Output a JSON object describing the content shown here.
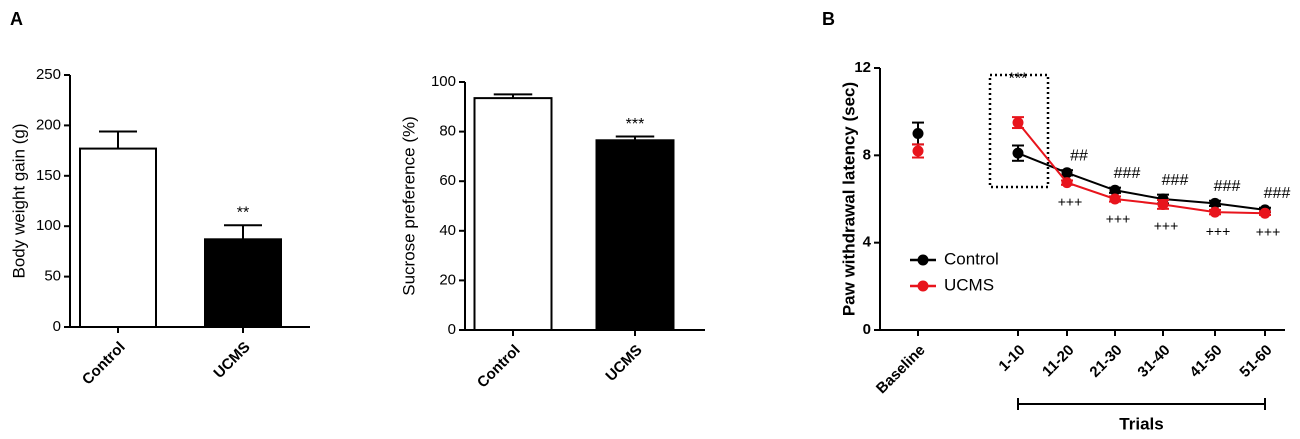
{
  "panels": [
    "A",
    "B"
  ],
  "chart_data": [
    {
      "type": "bar",
      "ylabel": "Body weight gain (g)",
      "categories": [
        "Control",
        "UCMS"
      ],
      "values": [
        177,
        87
      ],
      "errors": [
        17,
        14
      ],
      "colors": [
        "#ffffff",
        "#000000"
      ],
      "annotations": [
        null,
        "**"
      ],
      "ylim": [
        0,
        250
      ],
      "yticks": [
        0,
        50,
        100,
        150,
        200,
        250
      ]
    },
    {
      "type": "bar",
      "ylabel": "Sucrose preference (%)",
      "categories": [
        "Control",
        "UCMS"
      ],
      "values": [
        93.5,
        76.5
      ],
      "errors": [
        1.5,
        1.5
      ],
      "colors": [
        "#ffffff",
        "#000000"
      ],
      "annotations": [
        null,
        "***"
      ],
      "ylim": [
        0,
        100
      ],
      "yticks": [
        0,
        20,
        40,
        60,
        80,
        100
      ]
    },
    {
      "type": "line",
      "ylabel": "Paw withdrawal latency (sec)",
      "xlabel": "Trials",
      "categories": [
        "Baseline",
        "1-10",
        "11-20",
        "21-30",
        "31-40",
        "41-50",
        "51-60"
      ],
      "series": [
        {
          "name": "Control",
          "color": "#000000",
          "values": [
            9.0,
            8.1,
            7.2,
            6.4,
            6.0,
            5.8,
            5.5
          ],
          "errors": [
            0.5,
            0.35,
            0.12,
            0.12,
            0.2,
            0.12,
            0.1
          ]
        },
        {
          "name": "UCMS",
          "color": "#e8141c",
          "values": [
            8.2,
            9.5,
            6.75,
            6.0,
            5.75,
            5.4,
            5.35
          ],
          "errors": [
            0.3,
            0.25,
            0.1,
            0.12,
            0.2,
            0.1,
            0.08
          ]
        }
      ],
      "annotations_above": [
        null,
        "***",
        "##",
        "###",
        "###",
        "###",
        "###"
      ],
      "annotations_below": [
        null,
        null,
        "+++",
        "+++",
        "+++",
        "+++",
        "+++"
      ],
      "legend": "lower left",
      "ylim": [
        0,
        12
      ],
      "yticks": [
        0,
        4,
        8,
        12
      ]
    }
  ]
}
